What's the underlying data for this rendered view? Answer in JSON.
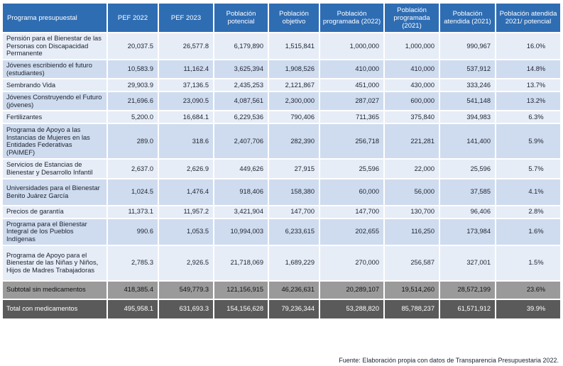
{
  "table": {
    "headers": [
      "Programa presupuestal",
      "PEF 2022",
      "PEF 2023",
      "Población potencial",
      "Población objetivo",
      "Población programada (2022)",
      "Población programada (2021)",
      "Población atendida (2021)",
      "Población atendida 2021/ potencial"
    ],
    "rows": [
      [
        "Pensión para el Bienestar de las Personas con Discapacidad Permanente",
        "20,037.5",
        "26,577.8",
        "6,179,890",
        "1,515,841",
        "1,000,000",
        "1,000,000",
        "990,967",
        "16.0%"
      ],
      [
        "Jóvenes escribiendo el futuro (estudiantes)",
        "10,583.9",
        "11,162.4",
        "3,625,394",
        "1,908,526",
        "410,000",
        "410,000",
        "537,912",
        "14.8%"
      ],
      [
        "Sembrando Vida",
        "29,903.9",
        "37,136.5",
        "2,435,253",
        "2,121,867",
        "451,000",
        "430,000",
        "333,246",
        "13.7%"
      ],
      [
        "Jóvenes Construyendo el Futuro (jóvenes)",
        "21,696.6",
        "23,090.5",
        "4,087,561",
        "2,300,000",
        "287,027",
        "600,000",
        "541,148",
        "13.2%"
      ],
      [
        "Fertilizantes",
        "5,200.0",
        "16,684.1",
        "6,229,536",
        "790,406",
        "711,365",
        "375,840",
        "394,983",
        "6.3%"
      ],
      [
        "Programa de Apoyo a las Instancias de Mujeres en las Entidades Federativas (PAIMEF)",
        "289.0",
        "318.6",
        "2,407,706",
        "282,390",
        "256,718",
        "221,281",
        "141,400",
        "5.9%"
      ],
      [
        "Servicios de Estancias de Bienestar y Desarrollo Infantil",
        "2,637.0",
        "2,626.9",
        "449,626",
        "27,915",
        "25,596",
        "22,000",
        "25,596",
        "5.7%"
      ],
      [
        "Universidades para el Bienestar Benito Juárez García",
        "1,024.5",
        "1,476.4",
        "918,406",
        "158,380",
        "60,000",
        "56,000",
        "37,585",
        "4.1%"
      ],
      [
        "Precios de garantía",
        "11,373.1",
        "11,957.2",
        "3,421,904",
        "147,700",
        "147,700",
        "130,700",
        "96,406",
        "2.8%"
      ],
      [
        "Programa para el Bienestar Integral de los Pueblos Indígenas",
        "990.6",
        "1,053.5",
        "10,994,003",
        "6,233,615",
        "202,655",
        "116,250",
        "173,984",
        "1.6%"
      ],
      [
        "Programa de Apoyo para el Bienestar de las Niñas y Niños, Hijos de Madres Trabajadoras",
        "2,785.3",
        "2,926.5",
        "21,718,069",
        "1,689,229",
        "270,000",
        "256,587",
        "327,001",
        "1.5%"
      ]
    ],
    "subtotal": [
      "Subtotal sin medicamentos",
      "418,385.4",
      "549,779.3",
      "121,156,915",
      "46,236,631",
      "20,289,107",
      "19,514,260",
      "28,572,199",
      "23.6%"
    ],
    "total": [
      "Total con medicamentos",
      "495,958.1",
      "631,693.3",
      "154,156,628",
      "79,236,344",
      "53,288,820",
      "85,788,237",
      "61,571,912",
      "39.9%"
    ]
  },
  "source": "Fuente: Elaboración propia con datos de Transparencia Presupuestaria 2022."
}
